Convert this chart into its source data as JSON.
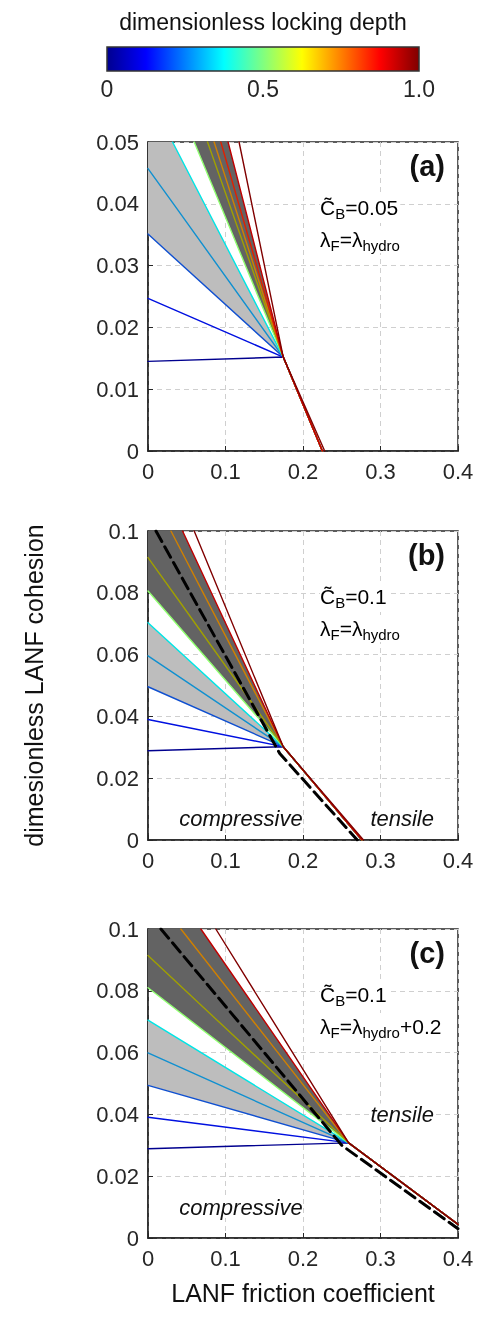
{
  "chart_data": [
    {
      "type": "line",
      "title": "(a)",
      "clabel": "dimensionless locking depth",
      "clim": [
        0,
        1
      ],
      "cticks": [
        0,
        0.5,
        {
          "value": 1,
          "label": "1.0"
        }
      ],
      "xlim": [
        0,
        0.4
      ],
      "ylim": [
        0,
        0.05
      ],
      "xticks": [
        0,
        0.1,
        0.2,
        0.3,
        0.4
      ],
      "yticks": [
        0,
        0.01,
        0.02,
        0.03,
        0.04,
        0.05
      ],
      "grid": true,
      "marker": "none",
      "annotations": [
        "C̃$_{B}$=0.05",
        "λ$_{F}$=λ$_{hydro}$"
      ],
      "series": [
        {
          "color": "#00008f",
          "x": [
            0,
            0.1745,
            0.225
          ],
          "values": [
            0.0145,
            0.0152,
            0
          ]
        },
        {
          "color": "#0010e0",
          "x": [
            0,
            0.1745,
            0.225
          ],
          "values": [
            0.0247,
            0.0152,
            0
          ]
        },
        {
          "color": "#1050d0",
          "x": [
            0,
            0.1745,
            0.225
          ],
          "values": [
            0.0351,
            0.0152,
            0
          ]
        },
        {
          "color": "#1090d0",
          "x": [
            0,
            0.0317,
            0.1745,
            0.225
          ],
          "values": [
            0.0457,
            0.0402,
            0.0152,
            0
          ],
          "lower": [
            0.0351,
            0.0315,
            0.0152,
            null
          ],
          "upper": [
            0.05,
            0.05,
            0.0152,
            null
          ]
        },
        {
          "color": "#00e5e5",
          "x": [
            0.0317,
            0.1745,
            0.225
          ],
          "values": [
            0.05,
            0.0152,
            0
          ]
        },
        {
          "color": "#90ff70",
          "x": [
            0.0596,
            0.1033,
            0.1745,
            0.225
          ],
          "values": [
            0.05,
            0.0368,
            0.0152,
            0
          ],
          "lower": [
            0.05,
            0.0368,
            0.0152,
            null
          ],
          "upper": [
            0.05,
            0.05,
            0.0152,
            null
          ]
        },
        {
          "color": "#a0a000",
          "x": [
            0.0768,
            0.1745,
            0.225
          ],
          "values": [
            0.05,
            0.0152,
            0
          ]
        },
        {
          "color": "#d08000",
          "x": [
            0.0853,
            0.1745,
            0.225
          ],
          "values": [
            0.05,
            0.0152,
            0
          ]
        },
        {
          "color": "#e02000",
          "x": [
            0.0939,
            0.1745,
            0.225
          ],
          "values": [
            0.05,
            0.0152,
            0
          ]
        },
        {
          "color": "#c00000",
          "x": [
            0.1033,
            0.1745,
            0.225
          ],
          "values": [
            0.05,
            0.0152,
            0
          ]
        },
        {
          "color": "#800000",
          "x": [
            0.1175,
            0.1745,
            0.228
          ],
          "values": [
            0.05,
            0.0152,
            0
          ]
        }
      ]
    },
    {
      "type": "line",
      "title": "(b)",
      "ylabel": "dimesionless LANF cohesion",
      "xlim": [
        0,
        0.4
      ],
      "ylim": [
        0,
        0.1
      ],
      "xticks": [
        0,
        0.1,
        0.2,
        0.3,
        0.4
      ],
      "yticks": [
        0,
        0.02,
        0.04,
        0.06,
        0.08,
        0.1
      ],
      "grid": true,
      "marker": "none",
      "annotations": [
        "C̃$_{B}$=0.1",
        "λ$_{F}$=λ$_{hydro}$",
        "compressive",
        "tensile"
      ],
      "series": [
        {
          "color": "#00008f",
          "x": [
            0,
            0.1745,
            0.276
          ],
          "values": [
            0.0289,
            0.0302,
            0
          ]
        },
        {
          "color": "#0010e0",
          "x": [
            0,
            0.1745,
            0.276
          ],
          "values": [
            0.039,
            0.0302,
            0
          ]
        },
        {
          "color": "#1050d0",
          "x": [
            0,
            0.1745,
            0.276
          ],
          "values": [
            0.0496,
            0.0302,
            0
          ]
        },
        {
          "color": "#1090d0",
          "x": [
            0,
            0.1745,
            0.276
          ],
          "values": [
            0.0596,
            0.0302,
            0
          ],
          "lower": [
            0.0496,
            0.0302,
            null
          ],
          "upper": [
            0.0703,
            0.0302,
            null
          ]
        },
        {
          "color": "#00e5e5",
          "x": [
            0,
            0.1745,
            0.276
          ],
          "values": [
            0.0703,
            0.0302,
            0
          ]
        },
        {
          "color": "#90ff70",
          "x": [
            0,
            0.1745,
            0.276
          ],
          "values": [
            0.0806,
            0.0302,
            0
          ]
        },
        {
          "color": "#a0a000",
          "x": [
            0,
            0.0446,
            0.1745,
            0.276
          ],
          "values": [
            0.0914,
            0.0758,
            0.0302,
            0
          ],
          "lower": [
            0.0806,
            0.0677,
            0.0302,
            null
          ],
          "upper": [
            0.1,
            0.1,
            0.0302,
            null
          ]
        },
        {
          "color": "#d08000",
          "x": [
            0.0296,
            0.1745,
            0.276
          ],
          "values": [
            0.1,
            0.0302,
            0
          ]
        },
        {
          "color": "#c00000",
          "x": [
            0.0446,
            0.1745,
            0.276
          ],
          "values": [
            0.1,
            0.0302,
            0
          ]
        },
        {
          "color": "#800000",
          "x": [
            0.0596,
            0.1745,
            0.278
          ],
          "values": [
            0.1,
            0.0302,
            0
          ]
        },
        {
          "color": "#000000",
          "line_style": "dashed",
          "x": [
            0.0103,
            0.17,
            0.27
          ],
          "values": [
            0.1,
            0.028,
            0
          ]
        }
      ]
    },
    {
      "type": "line",
      "title": "(c)",
      "xlabel": "LANF friction coefficient",
      "xlim": [
        0,
        0.4
      ],
      "ylim": [
        0,
        0.1
      ],
      "xticks": [
        0,
        0.1,
        0.2,
        0.3,
        0.4
      ],
      "yticks": [
        0,
        0.02,
        0.04,
        0.06,
        0.08,
        0.1
      ],
      "grid": true,
      "marker": "none",
      "annotations": [
        "C̃$_{B}$=0.1",
        "λ$_{F}$=λ$_{hydro}$+0.2",
        "tensile",
        "compressive"
      ],
      "series": [
        {
          "color": "#00008f",
          "x": [
            0,
            0.2589,
            0.4
          ],
          "values": [
            0.0289,
            0.0308,
            0.0044
          ]
        },
        {
          "color": "#0010e0",
          "x": [
            0,
            0.2589,
            0.4
          ],
          "values": [
            0.0391,
            0.0308,
            0.0044
          ]
        },
        {
          "color": "#1050d0",
          "x": [
            0,
            0.2589,
            0.4
          ],
          "values": [
            0.0494,
            0.0308,
            0.0044
          ]
        },
        {
          "color": "#1090d0",
          "x": [
            0,
            0.2589,
            0.4
          ],
          "values": [
            0.0599,
            0.0308,
            0.0044
          ],
          "lower": [
            0.0494,
            0.0308,
            null
          ],
          "upper": [
            0.0705,
            0.0308,
            null
          ]
        },
        {
          "color": "#00e5e5",
          "x": [
            0,
            0.2589,
            0.4
          ],
          "values": [
            0.0705,
            0.0308,
            0.0044
          ]
        },
        {
          "color": "#90ff70",
          "x": [
            0,
            0.2589,
            0.4
          ],
          "values": [
            0.081,
            0.0308,
            0.0044
          ]
        },
        {
          "color": "#a0a000",
          "x": [
            0,
            0.0682,
            0.2589,
            0.4
          ],
          "values": [
            0.0914,
            0.0754,
            0.0308,
            0.0044
          ],
          "lower": [
            0.081,
            0.0678,
            0.0308,
            null
          ],
          "upper": [
            0.1,
            0.1,
            0.0308,
            null
          ]
        },
        {
          "color": "#d08000",
          "x": [
            0.0424,
            0.2589,
            0.4
          ],
          "values": [
            0.1,
            0.0308,
            0.0044
          ]
        },
        {
          "color": "#c00000",
          "x": [
            0.0682,
            0.2589,
            0.4
          ],
          "values": [
            0.1,
            0.0308,
            0.0044
          ]
        },
        {
          "color": "#800000",
          "x": [
            0.0875,
            0.2589,
            0.4
          ],
          "values": [
            0.1,
            0.0308,
            0.0044
          ]
        },
        {
          "color": "#000000",
          "line_style": "dashed",
          "x": [
            0.0167,
            0.25,
            0.4
          ],
          "values": [
            0.1,
            0.03,
            0.003
          ]
        }
      ]
    }
  ]
}
